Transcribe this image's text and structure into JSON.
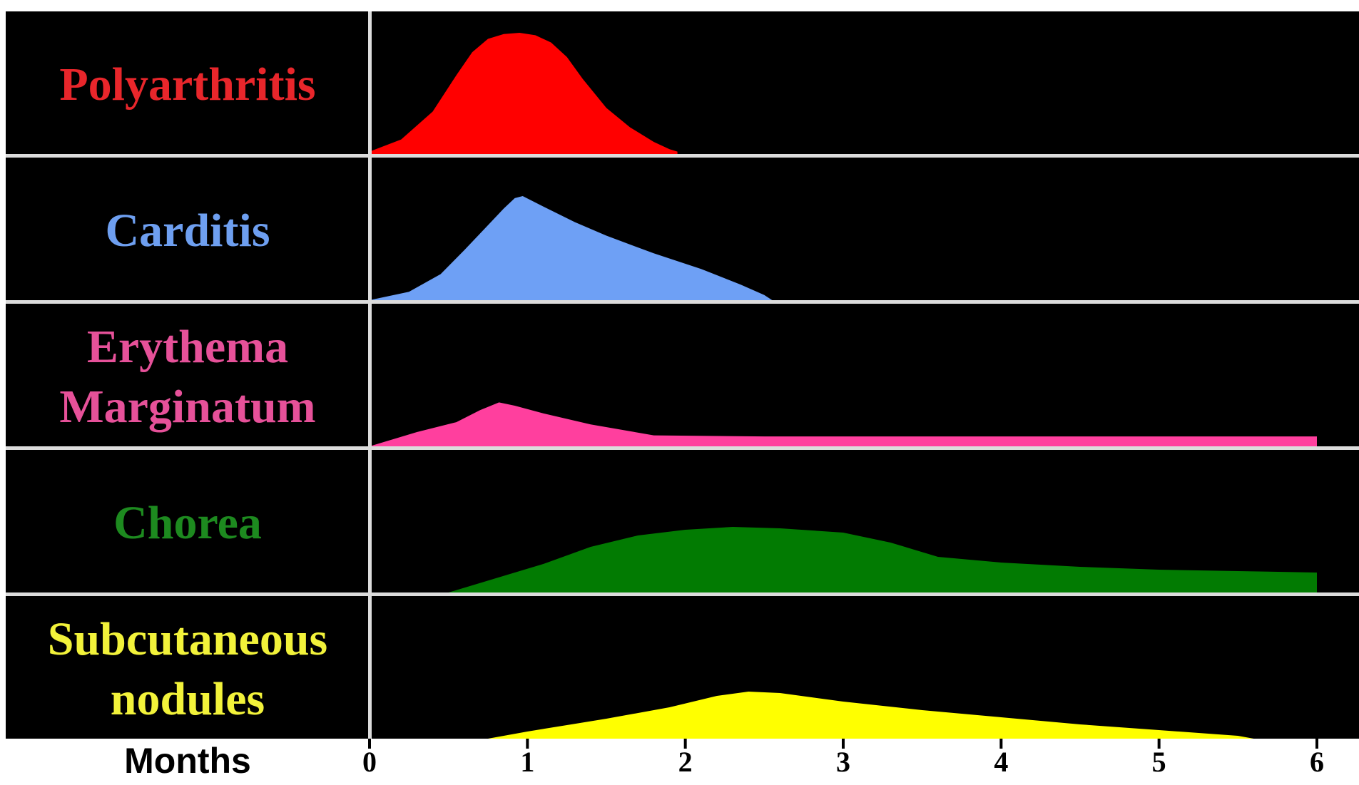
{
  "chart_data": {
    "type": "area",
    "xlabel": "Months",
    "xlim": [
      0,
      6
    ],
    "x_ticks": [
      "0",
      "1",
      "2",
      "3",
      "4",
      "5",
      "6"
    ],
    "colors": {
      "background": "#000000",
      "divider": "#dcdcdc",
      "page": "#ffffff"
    },
    "series": [
      {
        "name": "Polyarthritis",
        "label_lines": [
          "Polyarthritis"
        ],
        "color": "#ff0000",
        "label_color": "#e8262b",
        "points": [
          [
            0,
            0.02
          ],
          [
            0.2,
            0.12
          ],
          [
            0.4,
            0.35
          ],
          [
            0.55,
            0.65
          ],
          [
            0.65,
            0.84
          ],
          [
            0.75,
            0.95
          ],
          [
            0.85,
            0.99
          ],
          [
            0.95,
            1.0
          ],
          [
            1.05,
            0.98
          ],
          [
            1.15,
            0.92
          ],
          [
            1.25,
            0.8
          ],
          [
            1.35,
            0.62
          ],
          [
            1.5,
            0.38
          ],
          [
            1.65,
            0.22
          ],
          [
            1.8,
            0.1
          ],
          [
            1.9,
            0.04
          ],
          [
            1.95,
            0.02
          ]
        ]
      },
      {
        "name": "Carditis",
        "label_lines": [
          "Carditis"
        ],
        "color": "#6ea0f5",
        "label_color": "#6e9ff0",
        "points": [
          [
            0,
            0.0
          ],
          [
            0.25,
            0.08
          ],
          [
            0.45,
            0.25
          ],
          [
            0.6,
            0.48
          ],
          [
            0.75,
            0.72
          ],
          [
            0.85,
            0.88
          ],
          [
            0.92,
            0.98
          ],
          [
            0.97,
            1.0
          ],
          [
            1.1,
            0.9
          ],
          [
            1.3,
            0.75
          ],
          [
            1.5,
            0.62
          ],
          [
            1.8,
            0.45
          ],
          [
            2.1,
            0.3
          ],
          [
            2.35,
            0.15
          ],
          [
            2.5,
            0.05
          ],
          [
            2.55,
            0.0
          ]
        ]
      },
      {
        "name": "Erythema Marginatum",
        "label_lines": [
          "Erythema",
          "Marginatum"
        ],
        "color": "#ff3f9e",
        "label_color": "#e65199",
        "points": [
          [
            0,
            0.0
          ],
          [
            0.3,
            0.13
          ],
          [
            0.55,
            0.22
          ],
          [
            0.7,
            0.33
          ],
          [
            0.82,
            0.4
          ],
          [
            0.92,
            0.37
          ],
          [
            1.1,
            0.3
          ],
          [
            1.4,
            0.2
          ],
          [
            1.8,
            0.1
          ],
          [
            2.5,
            0.09
          ],
          [
            4,
            0.09
          ],
          [
            6,
            0.09
          ]
        ]
      },
      {
        "name": "Chorea",
        "label_lines": [
          "Chorea"
        ],
        "color": "#027b02",
        "label_color": "#1d8a1f",
        "points": [
          [
            0.5,
            0.0
          ],
          [
            0.8,
            0.1
          ],
          [
            1.1,
            0.2
          ],
          [
            1.4,
            0.32
          ],
          [
            1.7,
            0.4
          ],
          [
            2.0,
            0.44
          ],
          [
            2.3,
            0.46
          ],
          [
            2.6,
            0.45
          ],
          [
            3.0,
            0.42
          ],
          [
            3.3,
            0.35
          ],
          [
            3.6,
            0.25
          ],
          [
            4.0,
            0.21
          ],
          [
            4.5,
            0.18
          ],
          [
            5.0,
            0.16
          ],
          [
            5.5,
            0.15
          ],
          [
            6.0,
            0.14
          ]
        ]
      },
      {
        "name": "Subcutaneous nodules",
        "label_lines": [
          "Subcutaneous",
          "nodules"
        ],
        "color": "#ffff00",
        "label_color": "#f2f23a",
        "points": [
          [
            0.75,
            0.0
          ],
          [
            1.0,
            0.05
          ],
          [
            1.5,
            0.14
          ],
          [
            1.9,
            0.22
          ],
          [
            2.2,
            0.3
          ],
          [
            2.4,
            0.33
          ],
          [
            2.6,
            0.32
          ],
          [
            3.0,
            0.26
          ],
          [
            3.5,
            0.2
          ],
          [
            4.0,
            0.15
          ],
          [
            4.5,
            0.1
          ],
          [
            5.0,
            0.06
          ],
          [
            5.5,
            0.02
          ],
          [
            5.6,
            0.0
          ]
        ]
      }
    ]
  }
}
